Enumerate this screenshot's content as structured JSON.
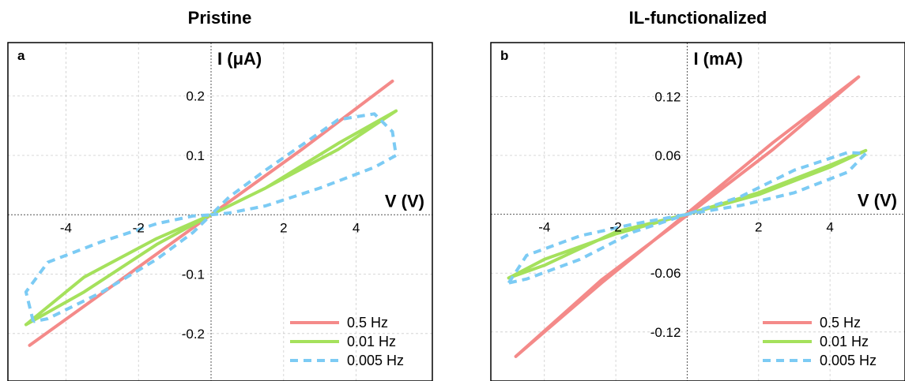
{
  "colors": {
    "series_0_5hz": "#f48a89",
    "series_0_01hz": "#a5e15c",
    "series_0_005hz": "#7ccbf4",
    "grid": "#cccccc",
    "frame": "#000000"
  },
  "chart_data": [
    {
      "type": "line",
      "title": "Pristine",
      "panel_label": "a",
      "xlabel": "V (V)",
      "ylabel": "I (μA)",
      "grid": true,
      "legend": "bottom-right",
      "xlim": [
        -5.6,
        6.1
      ],
      "ylim": [
        -0.28,
        0.29
      ],
      "xticks": [
        -4,
        -2,
        2,
        4
      ],
      "yticks": [
        0.2,
        0.1,
        -0.1,
        -0.2
      ],
      "ytick_labels": [
        "0.2",
        "0.1",
        "-0.1",
        "-0.2"
      ],
      "xgrid": [
        -4,
        -2,
        0,
        2,
        4
      ],
      "ygrid": [
        -0.2,
        -0.1,
        0,
        0.1,
        0.2
      ],
      "series": [
        {
          "name": "0.5 Hz",
          "color": "#f48a89",
          "dash": false,
          "x": [
            -5.0,
            -2.5,
            0,
            2.5,
            5.0,
            2.5,
            0,
            -2.5,
            -5.0
          ],
          "y": [
            -0.22,
            -0.11,
            0,
            0.11,
            0.225,
            0.11,
            0,
            -0.11,
            -0.22
          ]
        },
        {
          "name": "0.01 Hz",
          "color": "#a5e15c",
          "dash": false,
          "x": [
            -5.1,
            -3.5,
            -1.5,
            0,
            1.5,
            3.5,
            5.1,
            3.5,
            1.5,
            0,
            -1.5,
            -3.5,
            -5.1
          ],
          "y": [
            -0.185,
            -0.13,
            -0.05,
            0,
            0.045,
            0.12,
            0.175,
            0.11,
            0.045,
            0,
            -0.04,
            -0.105,
            -0.185
          ]
        },
        {
          "name": "0.005 Hz",
          "color": "#7ccbf4",
          "dash": true,
          "x": [
            -4.9,
            -5.1,
            -4.5,
            -3.0,
            -1.5,
            -0.5,
            0,
            0.5,
            1.5,
            2.8,
            3.5,
            4.5,
            5.0,
            5.1,
            4.5,
            3.0,
            1.5,
            0.5,
            0,
            -0.5,
            -1.5,
            -3.0,
            -4.5,
            -4.9
          ],
          "y": [
            -0.18,
            -0.13,
            -0.08,
            -0.045,
            -0.015,
            -0.002,
            0,
            0.03,
            0.075,
            0.13,
            0.16,
            0.17,
            0.14,
            0.1,
            0.08,
            0.045,
            0.015,
            0.003,
            0,
            -0.03,
            -0.075,
            -0.13,
            -0.175,
            -0.18
          ]
        }
      ]
    },
    {
      "type": "line",
      "title": "IL-functionalized",
      "panel_label": "b",
      "xlabel": "V (V)",
      "ylabel": "I (mA)",
      "grid": true,
      "legend": "bottom-right",
      "xlim": [
        -5.5,
        6.1
      ],
      "ylim": [
        -0.17,
        0.175
      ],
      "xticks": [
        -4,
        -2,
        2,
        4
      ],
      "yticks": [
        0.12,
        0.06,
        -0.06,
        -0.12
      ],
      "ytick_labels": [
        "0.12",
        "0.06",
        "-0.06",
        "-0.12"
      ],
      "xgrid": [
        -4,
        -2,
        0,
        2,
        4
      ],
      "ygrid": [
        -0.12,
        -0.06,
        0,
        0.06,
        0.12
      ],
      "series": [
        {
          "name": "0.5 Hz",
          "color": "#f48a89",
          "dash": false,
          "x": [
            -4.8,
            -2.4,
            0,
            2.4,
            4.8,
            2.4,
            0,
            -2.4,
            -4.8
          ],
          "y": [
            -0.145,
            -0.07,
            0.001,
            0.073,
            0.14,
            0.066,
            -0.001,
            -0.067,
            -0.145
          ]
        },
        {
          "name": "0.01 Hz",
          "color": "#a5e15c",
          "dash": false,
          "x": [
            -5.0,
            -4.0,
            -2.0,
            0,
            2.0,
            4.0,
            5.0,
            4.0,
            2.0,
            0,
            -2.0,
            -4.0,
            -5.0
          ],
          "y": [
            -0.065,
            -0.046,
            -0.02,
            0,
            0.02,
            0.048,
            0.065,
            0.05,
            0.022,
            0,
            -0.018,
            -0.052,
            -0.065
          ]
        },
        {
          "name": "0.005 Hz",
          "color": "#7ccbf4",
          "dash": true,
          "x": [
            -5.0,
            -4.5,
            -3.0,
            -1.5,
            0,
            1.5,
            3.0,
            4.5,
            5.0,
            4.5,
            3.0,
            1.5,
            0,
            -1.5,
            -3.0,
            -4.5,
            -5.0
          ],
          "y": [
            -0.07,
            -0.042,
            -0.022,
            -0.01,
            0,
            0.018,
            0.045,
            0.063,
            0.062,
            0.043,
            0.022,
            0.009,
            0,
            -0.018,
            -0.046,
            -0.066,
            -0.07
          ]
        }
      ]
    }
  ]
}
